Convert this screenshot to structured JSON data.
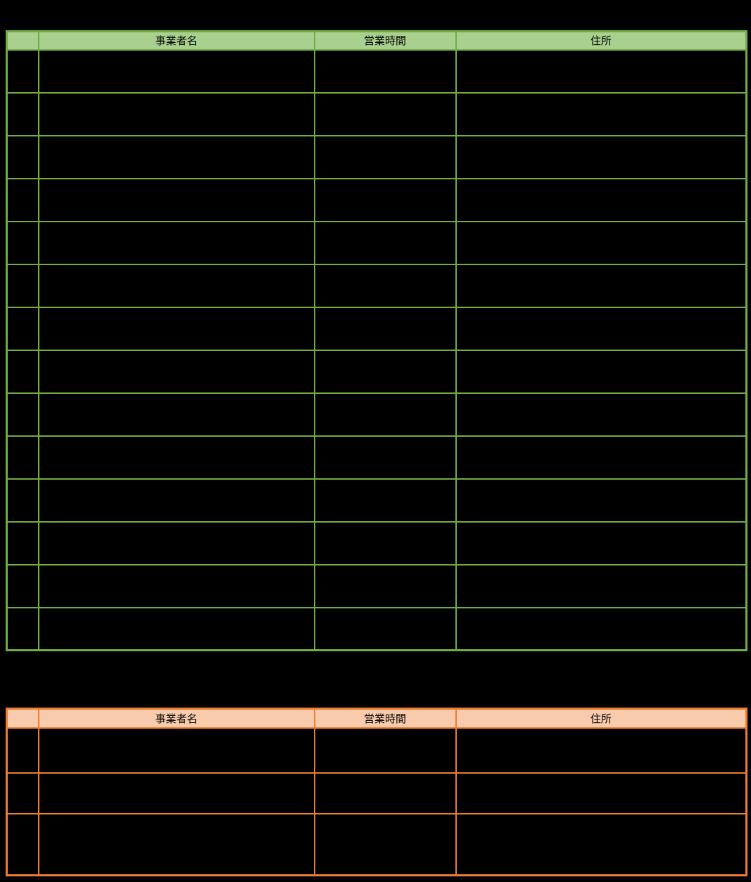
{
  "page": {
    "background_color": "#000000"
  },
  "tables": [
    {
      "name": "green-business-table",
      "theme": {
        "fill": "#A9D08E",
        "border": "#70AD47",
        "text": "#000000"
      },
      "headers": {
        "index": "",
        "business_name": "事業者名",
        "business_hours": "営業時間",
        "address": "住所"
      },
      "rows": [
        [
          "",
          "",
          "",
          ""
        ],
        [
          "",
          "",
          "",
          ""
        ],
        [
          "",
          "",
          "",
          ""
        ],
        [
          "",
          "",
          "",
          ""
        ],
        [
          "",
          "",
          "",
          ""
        ],
        [
          "",
          "",
          "",
          ""
        ],
        [
          "",
          "",
          "",
          ""
        ],
        [
          "",
          "",
          "",
          ""
        ],
        [
          "",
          "",
          "",
          ""
        ],
        [
          "",
          "",
          "",
          ""
        ],
        [
          "",
          "",
          "",
          ""
        ],
        [
          "",
          "",
          "",
          ""
        ],
        [
          "",
          "",
          "",
          ""
        ],
        [
          "",
          "",
          "",
          ""
        ]
      ]
    },
    {
      "name": "orange-business-table",
      "theme": {
        "fill": "#F8CBAD",
        "border": "#ED7D31",
        "text": "#000000"
      },
      "headers": {
        "index": "",
        "business_name": "事業者名",
        "business_hours": "営業時間",
        "address": "住所"
      },
      "rows": [
        [
          "",
          "",
          "",
          ""
        ],
        [
          "",
          "",
          "",
          ""
        ],
        [
          "",
          "",
          "",
          ""
        ]
      ]
    }
  ]
}
